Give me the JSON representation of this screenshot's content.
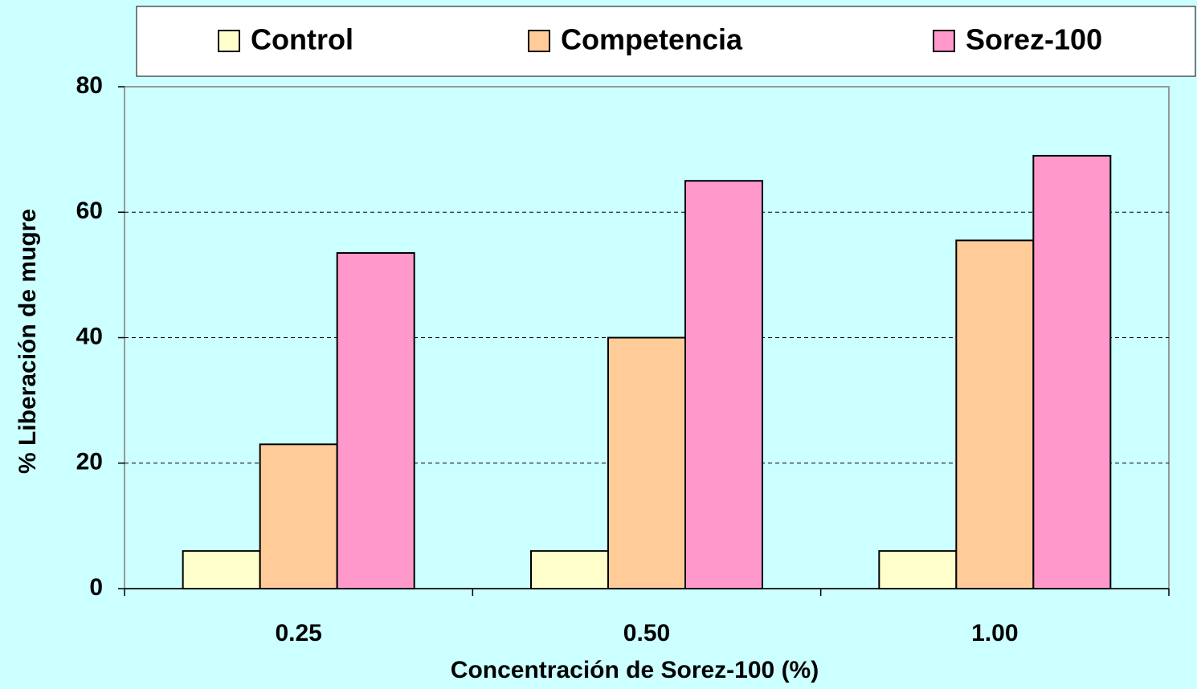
{
  "chart_data": {
    "type": "bar",
    "x_label": "Concentración de Sorez-100 (%)",
    "y_label": "% Liberación de mugre",
    "categories": [
      "0.25",
      "0.50",
      "1.00"
    ],
    "series": [
      {
        "name": "Control",
        "color": "#ffffcc",
        "values": [
          6,
          6,
          6
        ]
      },
      {
        "name": "Competencia",
        "color": "#ffcc99",
        "values": [
          23,
          40,
          55.5
        ]
      },
      {
        "name": "Sorez-100",
        "color": "#ff99cc",
        "values": [
          53.5,
          65,
          69
        ]
      }
    ],
    "ylim": [
      0,
      80
    ],
    "yticks": [
      0,
      20,
      40,
      60,
      80
    ],
    "grid": true,
    "legend": "top"
  }
}
